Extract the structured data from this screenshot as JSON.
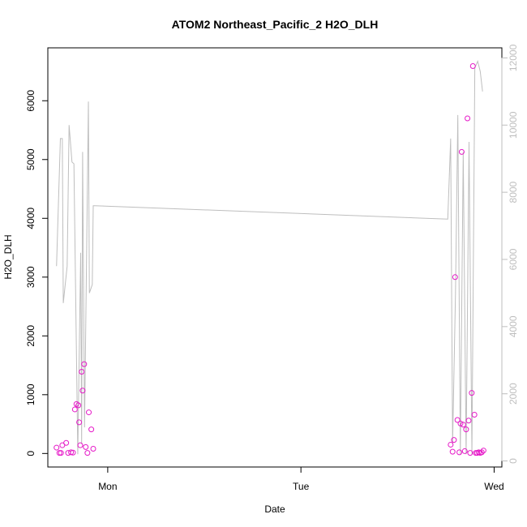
{
  "chart_data": {
    "type": "scatter",
    "title": "ATOM2 Northeast_Pacific_2 H2O_DLH",
    "xlabel": "Date",
    "ylabel": "H2O_DLH",
    "x_tick_labels": [
      {
        "x": 1.0,
        "label": "Mon"
      },
      {
        "x": 2.0,
        "label": "Tue"
      },
      {
        "x": 3.0,
        "label": "Wed"
      }
    ],
    "xlim": [
      0.69,
      3.04
    ],
    "ylim": [
      -230,
      6900
    ],
    "y_ticks": [
      0,
      1000,
      2000,
      3000,
      4000,
      5000,
      6000
    ],
    "y2lim": [
      -180,
      12300
    ],
    "y2_ticks": [
      0,
      2000,
      4000,
      6000,
      8000,
      10000,
      12000
    ],
    "grid": false,
    "colors": {
      "points": "#e619c8",
      "line": "#bebebe",
      "axis": "#000000",
      "axis_right": "#bebebe"
    },
    "series": [
      {
        "type": "scatter",
        "axis": "left",
        "points": [
          [
            0.735,
            100
          ],
          [
            0.75,
            10
          ],
          [
            0.758,
            10
          ],
          [
            0.765,
            140
          ],
          [
            0.785,
            180
          ],
          [
            0.795,
            10
          ],
          [
            0.81,
            20
          ],
          [
            0.82,
            15
          ],
          [
            0.83,
            750
          ],
          [
            0.838,
            840
          ],
          [
            0.848,
            820
          ],
          [
            0.852,
            530
          ],
          [
            0.858,
            140
          ],
          [
            0.865,
            1390
          ],
          [
            0.87,
            1070
          ],
          [
            0.878,
            1520
          ],
          [
            0.886,
            110
          ],
          [
            0.895,
            10
          ],
          [
            0.902,
            700
          ],
          [
            0.915,
            410
          ],
          [
            0.925,
            80
          ],
          [
            2.775,
            150
          ],
          [
            2.785,
            30
          ],
          [
            2.792,
            230
          ],
          [
            2.798,
            3000
          ],
          [
            2.81,
            570
          ],
          [
            2.82,
            20
          ],
          [
            2.826,
            510
          ],
          [
            2.832,
            5130
          ],
          [
            2.84,
            490
          ],
          [
            2.848,
            40
          ],
          [
            2.855,
            410
          ],
          [
            2.862,
            5700
          ],
          [
            2.868,
            560
          ],
          [
            2.876,
            10
          ],
          [
            2.884,
            1030
          ],
          [
            2.89,
            6590
          ],
          [
            2.898,
            660
          ],
          [
            2.905,
            10
          ],
          [
            2.912,
            10
          ],
          [
            2.92,
            20
          ],
          [
            2.928,
            10
          ],
          [
            2.936,
            20
          ],
          [
            2.945,
            50
          ]
        ]
      },
      {
        "type": "line",
        "axis": "right",
        "points": [
          [
            0.735,
            5800
          ],
          [
            0.755,
            9600
          ],
          [
            0.765,
            9600
          ],
          [
            0.77,
            4700
          ],
          [
            0.79,
            5800
          ],
          [
            0.8,
            10000
          ],
          [
            0.815,
            8900
          ],
          [
            0.825,
            8850
          ],
          [
            0.845,
            200
          ],
          [
            0.86,
            6200
          ],
          [
            0.865,
            500
          ],
          [
            0.87,
            9200
          ],
          [
            0.88,
            1000
          ],
          [
            0.9,
            10700
          ],
          [
            0.905,
            5000
          ],
          [
            0.92,
            5250
          ],
          [
            0.925,
            7600
          ],
          [
            0.93,
            7600
          ],
          [
            2.76,
            7200
          ],
          [
            2.775,
            9600
          ],
          [
            2.785,
            500
          ],
          [
            2.8,
            5000
          ],
          [
            2.812,
            10300
          ],
          [
            2.825,
            200
          ],
          [
            2.84,
            9200
          ],
          [
            2.855,
            200
          ],
          [
            2.87,
            9500
          ],
          [
            2.885,
            200
          ],
          [
            2.9,
            11700
          ],
          [
            2.915,
            11900
          ],
          [
            2.928,
            11600
          ],
          [
            2.94,
            11000
          ]
        ]
      }
    ]
  }
}
